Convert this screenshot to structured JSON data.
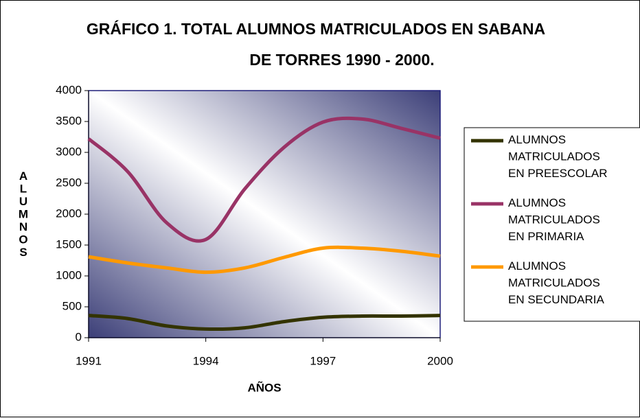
{
  "chart_data": {
    "type": "line",
    "title": [
      "GRÁFICO 1.  TOTAL ALUMNOS MATRICULADOS EN SABANA",
      "DE TORRES 1990 - 2000."
    ],
    "xlabel": "AÑOS",
    "ylabel": "ALUMNOS",
    "x": [
      1991,
      1992,
      1993,
      1994,
      1995,
      1996,
      1997,
      1998,
      1999,
      2000
    ],
    "series": [
      {
        "name": "ALUMNOS MATRICULADOS EN PREESCOLAR",
        "color": "#333300",
        "values": [
          360,
          310,
          190,
          140,
          160,
          260,
          330,
          350,
          350,
          360
        ]
      },
      {
        "name": "ALUMNOS MATRICULADOS EN PRIMARIA",
        "color": "#993366",
        "values": [
          3220,
          2690,
          1860,
          1590,
          2410,
          3080,
          3490,
          3540,
          3390,
          3230
        ]
      },
      {
        "name": "ALUMNOS MATRICULADOS EN SECUNDARIA",
        "color": "#ff9900",
        "values": [
          1310,
          1210,
          1130,
          1060,
          1130,
          1300,
          1450,
          1450,
          1400,
          1320
        ]
      }
    ],
    "xlim": [
      1991,
      2000
    ],
    "xticks": [
      1991,
      1994,
      1997,
      2000
    ],
    "ylim": [
      0,
      4000
    ],
    "yticks": [
      0,
      500,
      1000,
      1500,
      2000,
      2500,
      3000,
      3500,
      4000
    ],
    "legend": "right"
  }
}
